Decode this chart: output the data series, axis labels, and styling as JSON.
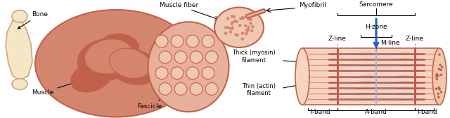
{
  "fig_width": 6.4,
  "fig_height": 1.69,
  "dpi": 100,
  "bg_color": "#ffffff",
  "bone_color": "#f5e6c8",
  "bone_outline": "#c8a87a",
  "muscle_dark": "#c0614a",
  "muscle_medium": "#d4856e",
  "muscle_light": "#e8b09a",
  "fascicle_color": "#e8b09a",
  "fiber_bg": "#f0c8b0",
  "fiber_dot_color": "#d4856e",
  "sarcomere_bg": "#f5d5c0",
  "thick_line_color": "#c05040",
  "thin_line_color": "#e08070",
  "z_line_color": "#c05040",
  "m_line_color": "#b0b0d0",
  "arrow_color": "#2060c0",
  "text_color": "#000000",
  "label_fontsize": 6.5,
  "annotations": {
    "bone": "Bone",
    "muscle": "Muscle",
    "muscle_fiber": "Muscle fiber",
    "fascicle": "Fascicle",
    "myofibril": "Myofibril",
    "thick_filament": "Thick (myosin)\nfilament",
    "thin_filament": "Thin (actin)\nfilament",
    "sarcomere": "Sarcomere",
    "h_zone": "H-zone",
    "z_line": "Z-line",
    "m_line": "M-line",
    "i_band": "I-band",
    "a_band": "A-band"
  }
}
